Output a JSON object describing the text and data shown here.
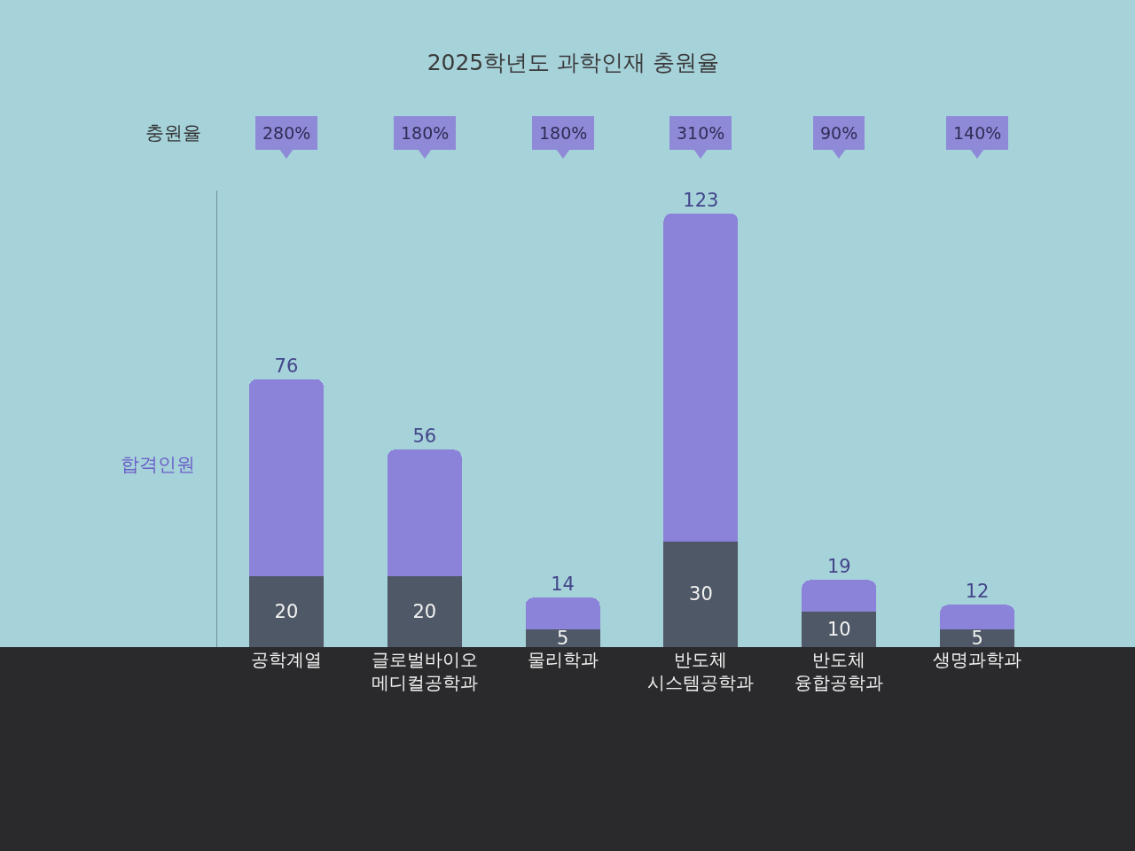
{
  "chart_data": {
    "type": "bar",
    "title": "2025학년도 과학인재 충원율",
    "ylabel": "합격인원",
    "categories": [
      "공학계열",
      "글로벌바이오\n메디컬공학과",
      "물리학과",
      "반도체\n시스템공학과",
      "반도체\n융합공학과",
      "생명과학과"
    ],
    "series": [
      {
        "color": "#4f5866",
        "values": [
          20,
          20,
          5,
          30,
          10,
          5
        ],
        "value_labels": [
          "20",
          "20",
          "5",
          "30",
          "10",
          "5"
        ]
      },
      {
        "color": "#8b83d9",
        "values": [
          56,
          36,
          9,
          93,
          9,
          7
        ]
      }
    ],
    "stacked": true,
    "totals": [
      "76",
      "56",
      "14",
      "123",
      "19",
      "12"
    ],
    "tick_labels": "x",
    "annotations": [
      "충원율",
      "280%",
      "180%",
      "180%",
      "310%",
      "90%",
      "140%"
    ]
  }
}
